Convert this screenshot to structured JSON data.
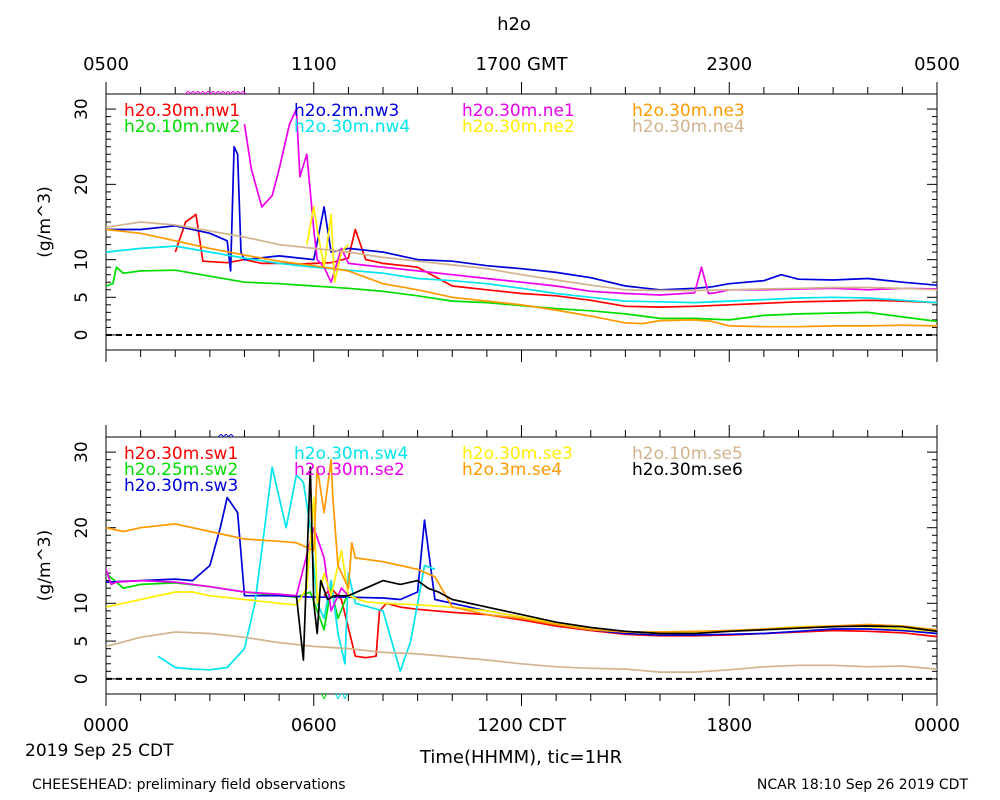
{
  "title": "h2o",
  "top_axis": {
    "ticks": [
      {
        "x": 0,
        "label": "0500"
      },
      {
        "x": 6,
        "label": "1100"
      },
      {
        "x": 12,
        "label": "1700 GMT"
      },
      {
        "x": 18,
        "label": "2300"
      },
      {
        "x": 24,
        "label": "0500"
      }
    ]
  },
  "bottom_axis": {
    "ticks": [
      {
        "x": 0,
        "label": "0000"
      },
      {
        "x": 6,
        "label": "0600"
      },
      {
        "x": 12,
        "label": "1200 CDT"
      },
      {
        "x": 18,
        "label": "1800"
      },
      {
        "x": 24,
        "label": "0000"
      }
    ],
    "date_label": "2019 Sep 25 CDT",
    "xlabel": "Time(HHMM), tic=1HR"
  },
  "footer": {
    "left": "CHEESEHEAD: preliminary field observations",
    "right": "NCAR 18:10 Sep 26 2019 CDT"
  },
  "chart_data": [
    {
      "type": "line",
      "panel": "top",
      "ylabel": "(g/m^3)",
      "ylim": [
        -2,
        32
      ],
      "xlim": [
        0,
        24
      ],
      "yticks": [
        0,
        5,
        10,
        20,
        30
      ],
      "zero_line": "dashed",
      "legend_cols": 4,
      "series": [
        {
          "name": "h2o.30m.nw1",
          "color": "#ff0000",
          "x": [
            2,
            2.3,
            2.6,
            2.8,
            3.5,
            4,
            4.5,
            5,
            5.5,
            6,
            6.5,
            7,
            7.2,
            7.5,
            8,
            9,
            10,
            11,
            12,
            13,
            14,
            15,
            16,
            17,
            18,
            19,
            20,
            21,
            22,
            23,
            24
          ],
          "y": [
            11,
            15,
            16,
            9.8,
            9.6,
            10,
            9.5,
            9.5,
            9.4,
            9.5,
            9.6,
            10.2,
            14,
            10,
            9.5,
            9.0,
            6.5,
            6.0,
            5.5,
            5.2,
            4.6,
            3.8,
            3.7,
            3.8,
            4.0,
            4.2,
            4.4,
            4.5,
            4.6,
            4.5,
            4.3
          ]
        },
        {
          "name": "h2o.10m.nw2",
          "color": "#00dd00",
          "x": [
            0,
            0.2,
            0.3,
            0.5,
            1,
            2,
            3,
            4,
            5,
            6,
            7,
            8,
            9,
            10,
            11,
            12,
            13,
            14,
            15,
            16,
            17,
            18,
            19,
            20,
            21,
            22,
            23,
            24
          ],
          "y": [
            6.5,
            6.8,
            9,
            8.2,
            8.5,
            8.6,
            7.8,
            7.0,
            6.8,
            6.5,
            6.2,
            5.8,
            5.2,
            4.5,
            4.3,
            3.9,
            3.5,
            3.2,
            2.8,
            2.2,
            2.2,
            2.0,
            2.6,
            2.8,
            2.9,
            3.0,
            2.4,
            1.8
          ]
        },
        {
          "name": "h2o.2m.nw3",
          "color": "#0000dd",
          "x": [
            0,
            1,
            2,
            3,
            3.5,
            3.6,
            3.7,
            3.8,
            3.9,
            4,
            5,
            6,
            6.3,
            6.5,
            7,
            8,
            9,
            10,
            11,
            12,
            13,
            14,
            15,
            16,
            17,
            17.5,
            18,
            19,
            19.5,
            20,
            21,
            22,
            23,
            24
          ],
          "y": [
            14,
            14,
            14.5,
            13.5,
            12.5,
            8.5,
            25,
            24,
            11,
            10,
            10.5,
            10,
            17,
            11,
            11.5,
            11,
            10,
            9.8,
            9.2,
            8.8,
            8.3,
            7.6,
            6.5,
            6.0,
            6.2,
            6.4,
            6.8,
            7.2,
            8.0,
            7.4,
            7.3,
            7.5,
            7.0,
            6.6
          ]
        },
        {
          "name": "h2o.30m.nw4",
          "color": "#00e5ee",
          "x": [
            0,
            1,
            2,
            3,
            4,
            5,
            6,
            7,
            8,
            9,
            10,
            11,
            12,
            13,
            14,
            15,
            16,
            17,
            18,
            19,
            20,
            21,
            22,
            23,
            24
          ],
          "y": [
            11,
            11.5,
            11.8,
            11.0,
            10.2,
            9.5,
            9.0,
            8.6,
            8.2,
            7.5,
            7.2,
            6.8,
            6.2,
            5.5,
            5.0,
            4.5,
            4.4,
            4.3,
            4.5,
            4.7,
            4.9,
            5.0,
            4.9,
            4.6,
            4.3
          ]
        },
        {
          "name": "h2o.30m.ne1",
          "color": "#ee00ee",
          "x": [
            4,
            4.2,
            4.5,
            4.8,
            5,
            5.3,
            5.5,
            5.6,
            5.8,
            6,
            6.1,
            6.3,
            6.5,
            6.7,
            6.8,
            7,
            8,
            9,
            10,
            11,
            12,
            13,
            14,
            15,
            16,
            17,
            17.2,
            17.4,
            17.6,
            18,
            19,
            20,
            21,
            22,
            23,
            24
          ],
          "y": [
            28,
            22,
            17,
            18.5,
            22,
            28,
            30,
            21,
            24,
            14,
            10,
            9,
            7,
            10,
            11.5,
            9.5,
            9.0,
            8.5,
            8.0,
            7.5,
            7.0,
            6.5,
            5.8,
            5.5,
            5.3,
            5.6,
            9.0,
            5.5,
            5.6,
            6.0,
            6.0,
            6.1,
            6.2,
            6.0,
            6.2,
            6.1
          ]
        },
        {
          "name": "h2o.30m.ne2",
          "color": "#ffee00",
          "x": [
            5.8,
            6,
            6.1,
            6.3,
            6.5,
            6.6,
            6.8,
            7
          ],
          "y": [
            12,
            17,
            14,
            9,
            16,
            7,
            11,
            12
          ]
        },
        {
          "name": "h2o.30m.ne3",
          "color": "#ff9900",
          "x": [
            0,
            1,
            2,
            3,
            4,
            5,
            6,
            7,
            8,
            9,
            10,
            11,
            12,
            13,
            14,
            15,
            15.5,
            16,
            17,
            17.5,
            18,
            19,
            20,
            21,
            22,
            23,
            24
          ],
          "y": [
            14,
            13.5,
            12.5,
            11.5,
            10.6,
            9.8,
            9.2,
            8.5,
            6.8,
            6.0,
            5.0,
            4.5,
            4.0,
            3.3,
            2.5,
            1.6,
            1.5,
            1.9,
            2.0,
            1.8,
            1.2,
            1.1,
            1.1,
            1.2,
            1.2,
            1.3,
            1.2
          ]
        },
        {
          "name": "h2o.30m.ne4",
          "color": "#d2b48c",
          "x": [
            0,
            1,
            2,
            3,
            4,
            5,
            6,
            7,
            8,
            9,
            10,
            11,
            12,
            13,
            14,
            15,
            16,
            17,
            18,
            19,
            20,
            21,
            22,
            23,
            24
          ],
          "y": [
            14.3,
            15.0,
            14.6,
            13.8,
            13.0,
            12.0,
            11.5,
            11.0,
            10.3,
            9.8,
            9.3,
            8.8,
            8.0,
            7.3,
            6.6,
            6.0,
            5.9,
            5.9,
            6.0,
            6.1,
            6.2,
            6.3,
            6.3,
            6.2,
            6.0
          ]
        }
      ]
    },
    {
      "type": "line",
      "panel": "bottom",
      "ylabel": "(g/m^3)",
      "ylim": [
        -2,
        32
      ],
      "xlim": [
        0,
        24
      ],
      "yticks": [
        0,
        5,
        10,
        20,
        30
      ],
      "zero_line": "dashed",
      "legend_cols": 4,
      "series": [
        {
          "name": "h2o.30m.sw1",
          "color": "#ff0000",
          "x": [
            6.3,
            6.5,
            6.8,
            7.2,
            7.5,
            7.8,
            7.9,
            8.1,
            8.5,
            9,
            10,
            11,
            12,
            13,
            14,
            15,
            16,
            17,
            18,
            19,
            20,
            21,
            22,
            23,
            24
          ],
          "y": [
            11,
            12,
            10.5,
            3,
            2.8,
            3,
            9,
            10,
            9.5,
            9.2,
            8.8,
            8.5,
            7.8,
            7.0,
            6.4,
            5.9,
            5.7,
            5.7,
            5.8,
            6.0,
            6.2,
            6.4,
            6.3,
            6.1,
            5.6
          ]
        },
        {
          "name": "h2o.25m.sw2",
          "color": "#00dd00",
          "x": [
            0,
            0.5,
            1,
            2,
            3,
            4,
            5,
            5.5,
            5.9,
            6.1,
            6.3,
            6.5,
            6.7,
            7
          ],
          "y": [
            14,
            12,
            12.5,
            12.7,
            12.2,
            11.5,
            11.0,
            10.8,
            11.5,
            9,
            6.5,
            12,
            8,
            11.5
          ]
        },
        {
          "name": "h2o.30m.sw3",
          "color": "#0000dd",
          "x": [
            0,
            1,
            2,
            2.5,
            3,
            3.3,
            3.5,
            3.8,
            4,
            5,
            6,
            7,
            8,
            8.5,
            9,
            9.2,
            9.5,
            10,
            11,
            12,
            13,
            14,
            15,
            16,
            17,
            18,
            19,
            20,
            21,
            22,
            23,
            24
          ],
          "y": [
            12.8,
            13,
            13.2,
            13,
            15,
            20,
            24,
            22,
            11,
            11,
            10.8,
            10.8,
            10.7,
            10.5,
            11.5,
            21,
            10.5,
            10.0,
            9.0,
            8.2,
            7.2,
            6.5,
            6.0,
            5.8,
            5.8,
            5.9,
            6.0,
            6.3,
            6.6,
            6.6,
            6.4,
            6.0
          ]
        },
        {
          "name": "h2o.30m.sw4",
          "color": "#00e5ee",
          "x": [
            1.5,
            2,
            2.5,
            3,
            3.5,
            4,
            4.3,
            4.5,
            4.8,
            5.2,
            5.5,
            5.7,
            5.9,
            6.1,
            6.3,
            6.5,
            6.7,
            6.9,
            7,
            7.2,
            7.6,
            8,
            8.5,
            8.8,
            9,
            9.2,
            9.5
          ],
          "y": [
            3,
            1.5,
            1.3,
            1.2,
            1.5,
            4,
            10,
            17,
            28,
            20,
            27,
            26,
            20,
            10,
            8,
            13,
            6,
            2,
            14,
            10,
            9.5,
            9,
            1,
            5,
            10,
            15,
            14.5
          ]
        },
        {
          "name": "h2o.30m.se2",
          "color": "#ee00ee",
          "x": [
            0,
            0.15,
            0.3,
            1,
            2,
            3,
            4,
            5,
            5.5,
            6,
            6.3,
            6.5,
            6.8,
            7
          ],
          "y": [
            14.5,
            12.5,
            12.8,
            13,
            12.8,
            12.2,
            11.5,
            11.2,
            11.0,
            20,
            16,
            9,
            12,
            11
          ]
        },
        {
          "name": "h2o.30m.se3",
          "color": "#ffee00",
          "x": [
            0,
            1,
            2,
            2.5,
            3,
            4,
            5,
            5.5,
            5.8,
            6,
            6.1,
            6.3,
            6.5,
            6.8,
            7,
            7.5,
            8,
            9,
            10,
            11,
            12,
            13,
            14,
            15,
            16,
            17,
            18,
            19,
            20,
            21,
            22,
            23,
            24
          ],
          "y": [
            9.5,
            10.5,
            11.5,
            11.5,
            11.0,
            10.5,
            10.0,
            9.8,
            12,
            24,
            10,
            14,
            11,
            17,
            11,
            10.2,
            10.0,
            9.8,
            9.5,
            9.0,
            8.2,
            7.4,
            6.7,
            6.2,
            6.0,
            6.1,
            6.3,
            6.6,
            6.9,
            7.0,
            6.9,
            6.6,
            6.3
          ]
        },
        {
          "name": "h2o.10m.se5",
          "color": "#d2b48c",
          "x": [
            0,
            1,
            2,
            3,
            4,
            5,
            6,
            7,
            8,
            9,
            10,
            11,
            12,
            13,
            14,
            15,
            16,
            17,
            18,
            19,
            20,
            21,
            22,
            23,
            24
          ],
          "y": [
            4.3,
            5.5,
            6.2,
            6.0,
            5.5,
            4.8,
            4.3,
            4.0,
            3.5,
            3.3,
            2.9,
            2.5,
            2.0,
            1.6,
            1.4,
            1.3,
            0.9,
            0.9,
            1.2,
            1.6,
            1.8,
            1.8,
            1.6,
            1.7,
            1.3
          ]
        },
        {
          "name": "h2o.3m.se4",
          "color": "#ff9900",
          "x": [
            0,
            0.5,
            1,
            2,
            3,
            4,
            5,
            5.5,
            6,
            6.1,
            6.3,
            6.5,
            6.55,
            6.7,
            7,
            7.1,
            7.2,
            8,
            8.5,
            9,
            9.5,
            10,
            11,
            12,
            13,
            14,
            15,
            16,
            17,
            18,
            19,
            20,
            21,
            22,
            23,
            24
          ],
          "y": [
            20,
            19.5,
            20,
            20.5,
            19.5,
            18.5,
            18.2,
            18.0,
            17,
            28,
            22,
            29,
            24,
            15,
            12,
            18,
            16,
            15.5,
            15,
            14.5,
            13.5,
            9.5,
            8.5,
            8.0,
            7.2,
            6.5,
            6.2,
            6.2,
            6.3,
            6.4,
            6.6,
            6.8,
            7.0,
            7.2,
            7.0,
            6.5
          ]
        },
        {
          "name": "h2o.30m.se6",
          "color": "#000000",
          "x": [
            5.5,
            5.7,
            5.9,
            6,
            6.1,
            6.2,
            6.4,
            6.6,
            7,
            7.5,
            8,
            8.5,
            9,
            9.3,
            9.6,
            10,
            11,
            12,
            13,
            14,
            15,
            16,
            17,
            18,
            19,
            20,
            21,
            22,
            23,
            24
          ],
          "y": [
            11,
            2.5,
            28,
            10,
            6,
            13,
            10.5,
            11,
            11,
            12,
            13,
            12.5,
            13,
            12,
            11.5,
            10.5,
            9.5,
            8.5,
            7.5,
            6.8,
            6.3,
            6.0,
            6.0,
            6.3,
            6.5,
            6.7,
            6.9,
            7.0,
            6.9,
            6.3
          ]
        }
      ],
      "markers": [
        {
          "x": 6.3,
          "color": "#00dd00"
        },
        {
          "x": 6.7,
          "color": "#00e5ee"
        },
        {
          "x": 6.9,
          "color": "#00e5ee"
        }
      ]
    }
  ]
}
